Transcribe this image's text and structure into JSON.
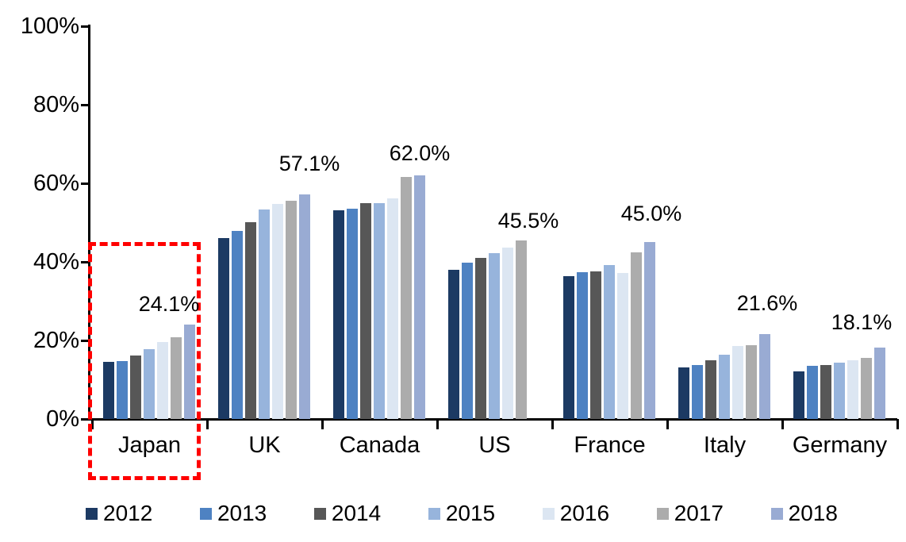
{
  "chart_data": {
    "type": "bar",
    "title": "",
    "categories": [
      "Japan",
      "UK",
      "Canada",
      "US",
      "France",
      "Italy",
      "Germany"
    ],
    "series": [
      {
        "name": "2012",
        "color": "#1C3A63",
        "values": [
          14.6,
          46.1,
          53.0,
          38.0,
          36.4,
          13.2,
          12.2
        ]
      },
      {
        "name": "2013",
        "color": "#4E82C2",
        "values": [
          14.8,
          47.9,
          53.4,
          39.7,
          37.4,
          13.8,
          13.6
        ]
      },
      {
        "name": "2014",
        "color": "#575757",
        "values": [
          16.2,
          50.1,
          54.8,
          41.0,
          37.5,
          14.9,
          13.8
        ]
      },
      {
        "name": "2015",
        "color": "#97B4DC",
        "values": [
          17.7,
          53.3,
          54.8,
          42.1,
          39.2,
          16.4,
          14.3
        ]
      },
      {
        "name": "2016",
        "color": "#DCE6F2",
        "values": [
          19.6,
          54.6,
          56.1,
          43.5,
          37.2,
          18.5,
          14.9
        ]
      },
      {
        "name": "2017",
        "color": "#ACACAC",
        "values": [
          20.8,
          55.6,
          61.5,
          45.5,
          42.3,
          18.7,
          15.5
        ]
      },
      {
        "name": "2018",
        "color": "#99ABD3",
        "values": [
          24.1,
          57.1,
          62.0,
          null,
          45.0,
          21.6,
          18.1
        ]
      }
    ],
    "annotations": [
      {
        "category": "Japan",
        "text": "24.1%"
      },
      {
        "category": "UK",
        "text": "57.1%"
      },
      {
        "category": "Canada",
        "text": "62.0%"
      },
      {
        "category": "US",
        "text": "45.5%"
      },
      {
        "category": "France",
        "text": "45.0%"
      },
      {
        "category": "Italy",
        "text": "21.6%"
      },
      {
        "category": "Germany",
        "text": "18.1%"
      }
    ],
    "y_axis": {
      "min": 0,
      "max": 100,
      "tick_labels": [
        "0%",
        "20%",
        "40%",
        "60%",
        "80%",
        "100%"
      ],
      "grid": false
    },
    "legend": {
      "position": "bottom",
      "items": [
        "2012",
        "2013",
        "2014",
        "2015",
        "2016",
        "2017",
        "2018"
      ]
    },
    "highlight_box": {
      "category": "Japan",
      "border_color": "#FF0000",
      "style": "dashed"
    },
    "axis_color": "#000000",
    "background_color": "#FFFFFF"
  }
}
